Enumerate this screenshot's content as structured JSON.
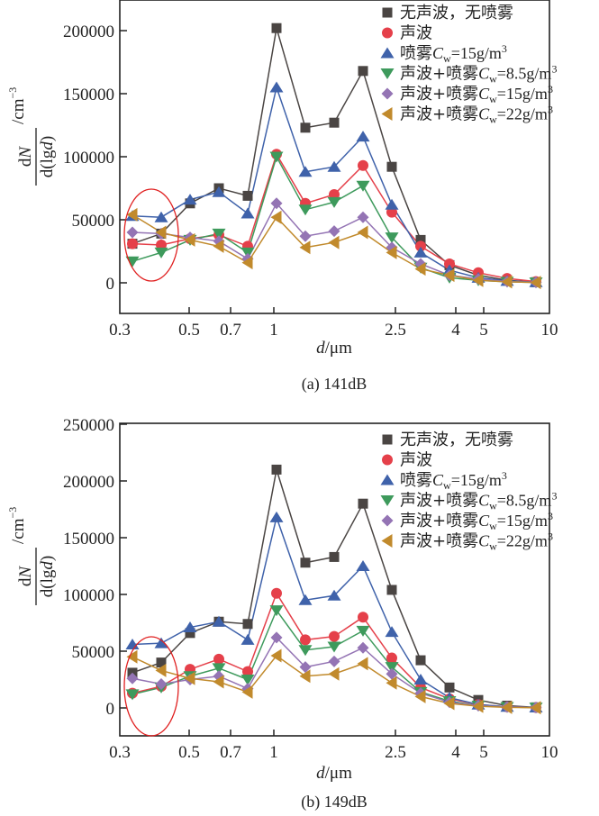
{
  "series_styles": [
    {
      "name": "无声波，无喷雾",
      "marker": "square",
      "color": "#4a4543"
    },
    {
      "name": "声波",
      "marker": "circle",
      "color": "#e5404a"
    },
    {
      "name": "喷雾Cw=15g/m3",
      "marker": "triangle-up",
      "color": "#3f62aa"
    },
    {
      "name": "声波+喷雾Cw=8.5g/m3",
      "marker": "triangle-down",
      "color": "#3e9a5c"
    },
    {
      "name": "声波+喷雾Cw=15g/m3",
      "marker": "diamond",
      "color": "#9474b4"
    },
    {
      "name": "声波+喷雾Cw=22g/m3",
      "marker": "triangle-left",
      "color": "#c18a2c"
    }
  ],
  "legend": [
    {
      "prefix": "无声波，无喷雾",
      "var": "",
      "sub": "",
      "suffix": "",
      "sup": ""
    },
    {
      "prefix": "声波",
      "var": "",
      "sub": "",
      "suffix": "",
      "sup": ""
    },
    {
      "prefix": "喷雾",
      "var": "C",
      "sub": "w",
      "suffix": "=15g/m",
      "sup": "3"
    },
    {
      "prefix": "声波+喷雾",
      "var": "C",
      "sub": "w",
      "suffix": "=8.5g/m",
      "sup": "3"
    },
    {
      "prefix": "声波+喷雾",
      "var": "C",
      "sub": "w",
      "suffix": "=15g/m",
      "sup": "3"
    },
    {
      "prefix": "声波+喷雾",
      "var": "C",
      "sub": "w",
      "suffix": "=22g/m",
      "sup": "3"
    }
  ],
  "chart_data": [
    {
      "type": "line",
      "title": "(a) 141dB",
      "xlabel": "d/μm",
      "ylabel": "dN/d(lgd) /cm⁻³",
      "x_tick_labels": [
        "0.3",
        "0.5",
        "0.7",
        "1",
        "2.5",
        "4",
        "5",
        "10"
      ],
      "y_ticks": [
        0,
        50000,
        100000,
        150000,
        200000
      ],
      "y_tick_labels": [
        "0",
        "50000",
        "100000",
        "150000",
        "200000"
      ],
      "ylim": [
        -25000,
        225000
      ],
      "legend_position": "top-right",
      "annotation": "red ellipse highlighting the first two size channels",
      "series": [
        {
          "name": "无声波，无喷雾",
          "values": [
            31000,
            39000,
            63000,
            75000,
            69000,
            202000,
            123000,
            127000,
            168000,
            92000,
            34000,
            14000,
            6000,
            2000,
            500
          ]
        },
        {
          "name": "声波",
          "values": [
            31000,
            30000,
            35000,
            38000,
            29000,
            102000,
            63000,
            70000,
            93000,
            56000,
            29000,
            15000,
            8000,
            3500,
            1000
          ]
        },
        {
          "name": "喷雾Cw=15g/m3",
          "values": [
            53000,
            52000,
            66000,
            72000,
            55000,
            155000,
            88000,
            92000,
            116000,
            62000,
            24000,
            10000,
            4000,
            1500,
            500
          ]
        },
        {
          "name": "声波+喷雾Cw=8.5g/m3",
          "values": [
            17000,
            24000,
            34000,
            39000,
            24000,
            100000,
            58000,
            64000,
            77000,
            36000,
            12000,
            4000,
            2000,
            800,
            300
          ]
        },
        {
          "name": "声波+喷雾Cw=15g/m3",
          "values": [
            40000,
            39000,
            36000,
            33000,
            19000,
            63000,
            37000,
            41000,
            52000,
            28000,
            15000,
            6000,
            3000,
            1000,
            400
          ]
        },
        {
          "name": "声波+喷雾Cw=22g/m3",
          "values": [
            54000,
            40000,
            34000,
            29000,
            16000,
            52000,
            28000,
            32000,
            40000,
            24000,
            11000,
            6000,
            2000,
            800,
            300
          ]
        }
      ]
    },
    {
      "type": "line",
      "title": "(b) 149dB",
      "xlabel": "d/μm",
      "ylabel": "dN/d(lgd) /cm⁻³",
      "x_tick_labels": [
        "0.3",
        "0.5",
        "0.7",
        "1",
        "2.5",
        "4",
        "5",
        "10"
      ],
      "y_ticks": [
        0,
        50000,
        100000,
        150000,
        200000,
        250000
      ],
      "y_tick_labels": [
        "0",
        "50000",
        "100000",
        "150000",
        "200000",
        "250000"
      ],
      "ylim": [
        -25000,
        250000
      ],
      "legend_position": "top-right",
      "annotation": "red ellipse highlighting the first two size channels",
      "series": [
        {
          "name": "无声波，无喷雾",
          "values": [
            31000,
            40000,
            66000,
            76000,
            74000,
            210000,
            128000,
            133000,
            180000,
            104000,
            42000,
            18000,
            7000,
            2000,
            500
          ]
        },
        {
          "name": "声波",
          "values": [
            13000,
            19000,
            34000,
            43000,
            32000,
            101000,
            60000,
            63000,
            80000,
            44000,
            18000,
            8000,
            3000,
            1000,
            400
          ]
        },
        {
          "name": "喷雾Cw=15g/m3",
          "values": [
            56000,
            57000,
            71000,
            76000,
            60000,
            168000,
            95000,
            99000,
            125000,
            67000,
            25000,
            9000,
            3000,
            1000,
            400
          ]
        },
        {
          "name": "声波+喷雾Cw=8.5g/m3",
          "values": [
            12000,
            18000,
            28000,
            35000,
            25000,
            86000,
            51000,
            54000,
            68000,
            36000,
            14000,
            6000,
            2000,
            800,
            300
          ]
        },
        {
          "name": "声波+喷雾Cw=15g/m3",
          "values": [
            26000,
            21000,
            25000,
            28000,
            17000,
            62000,
            36000,
            41000,
            53000,
            30000,
            13000,
            5000,
            2000,
            800,
            300
          ]
        },
        {
          "name": "声波+喷雾Cw=22g/m3",
          "values": [
            45000,
            33000,
            26000,
            23000,
            14000,
            46000,
            28000,
            30000,
            39000,
            22000,
            10000,
            4000,
            1500,
            500,
            200
          ]
        }
      ]
    }
  ]
}
